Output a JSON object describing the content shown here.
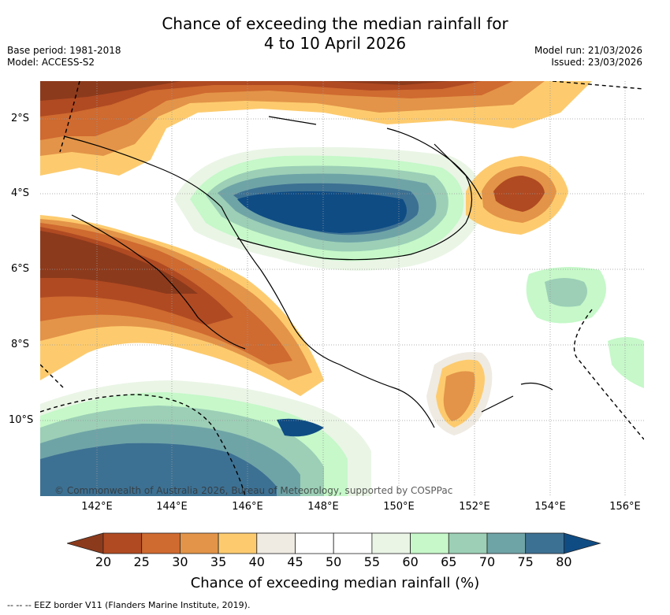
{
  "title": {
    "line1": "Chance of exceeding the median rainfall for",
    "line2": "4 to 10 April 2026"
  },
  "meta_left": {
    "base_period": "Base period: 1981-2018",
    "model": "Model: ACCESS-S2"
  },
  "meta_right": {
    "model_run": "Model run: 21/03/2026",
    "issued": "Issued: 23/03/2026"
  },
  "map": {
    "copyright": "© Commonwealth of Australia 2026, Bureau of Meteorology, supported by COSPPac"
  },
  "lat_labels": [
    "2°S",
    "4°S",
    "6°S",
    "8°S",
    "10°S"
  ],
  "lon_labels": [
    "142°E",
    "144°E",
    "146°E",
    "148°E",
    "150°E",
    "152°E",
    "154°E",
    "156°E"
  ],
  "colorbar": {
    "ticks": [
      "20",
      "25",
      "30",
      "35",
      "40",
      "45",
      "50",
      "55",
      "60",
      "65",
      "70",
      "75",
      "80"
    ],
    "colors": [
      "#8c3a1c",
      "#b04a22",
      "#cf6a30",
      "#e39448",
      "#fdcb6e",
      "#efebe3",
      "#ffffff",
      "#ffffff",
      "#eaf5e6",
      "#c6f8c9",
      "#9ccfb6",
      "#6fa4a7",
      "#3d7193",
      "#0f4c84"
    ],
    "label": "Chance of exceeding median rainfall (%)"
  },
  "legend_note": "--  --  -- EEZ border V11 (Flanders Marine Institute, 2019)."
}
